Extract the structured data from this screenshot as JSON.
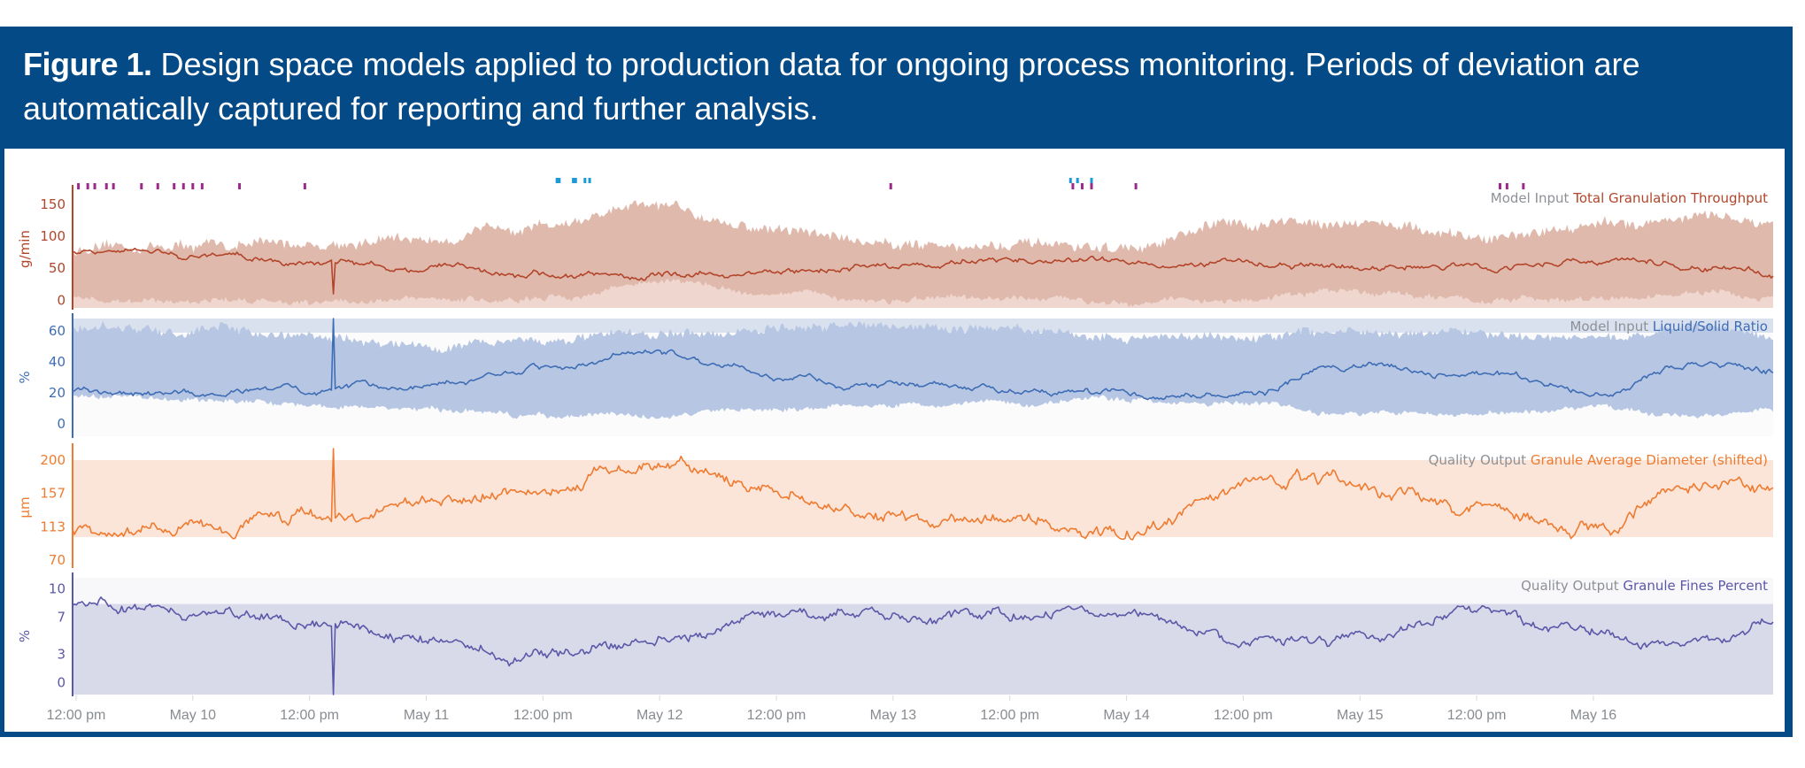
{
  "caption": {
    "label": "Figure 1.",
    "text": " Design space models applied to production data for ongoing process monitoring. Periods of deviation are automatically captured for reporting and further analysis."
  },
  "colors": {
    "frame": "#034a86",
    "deviation_purple": "#9b2a8c",
    "deviation_blue": "#1d9ad6"
  },
  "chart_data": [
    {
      "type": "area",
      "id": "throughput",
      "legend_prefix": "Model Input",
      "legend_name": "Total Granulation Throughput",
      "ylabel": "g/min",
      "yticks": [
        0,
        50,
        100,
        150
      ],
      "ylim": [
        -12,
        172
      ],
      "color_line": "#b2452a",
      "color_band": "#e0b9ad",
      "color_band_light": "#efd6ce",
      "band_description": "design-space band, lower ~0 to upper 60-145",
      "x_days": [
        0,
        0.5,
        1,
        1.5,
        2,
        2.5,
        3,
        3.5,
        4,
        4.5,
        5,
        5.5,
        6,
        6.5,
        7,
        7.25
      ],
      "values": [
        75,
        70,
        60,
        52,
        40,
        38,
        42,
        55,
        62,
        60,
        58,
        50,
        52,
        62,
        50,
        45
      ],
      "band_upper": [
        78,
        85,
        88,
        95,
        120,
        145,
        110,
        90,
        85,
        80,
        120,
        125,
        95,
        118,
        130,
        115
      ],
      "band_lower": [
        0,
        0,
        0,
        0,
        0,
        30,
        10,
        0,
        0,
        0,
        0,
        15,
        0,
        0,
        10,
        0
      ]
    },
    {
      "type": "area",
      "id": "liquid_solid_ratio",
      "legend_prefix": "Model Input",
      "legend_name": "Liquid/Solid Ratio",
      "ylabel": "%",
      "yticks": [
        0,
        20,
        40,
        60
      ],
      "ylim": [
        -8,
        68
      ],
      "color_line": "#3f6db5",
      "color_band": "#b7c7e3",
      "color_band_light": "#d9e1ef",
      "x_days": [
        0,
        0.5,
        1,
        1.5,
        2,
        2.5,
        3,
        3.5,
        4,
        4.5,
        5,
        5.5,
        6,
        6.5,
        7,
        7.25
      ],
      "values": [
        20,
        20,
        21,
        26,
        37,
        45,
        30,
        25,
        22,
        19,
        20,
        38,
        32,
        22,
        40,
        33
      ],
      "band_upper": [
        62,
        60,
        57,
        50,
        55,
        58,
        62,
        63,
        62,
        55,
        56,
        60,
        58,
        58,
        62,
        58
      ],
      "band_lower": [
        18,
        16,
        12,
        8,
        5,
        5,
        10,
        12,
        14,
        16,
        14,
        6,
        6,
        10,
        5,
        8
      ]
    },
    {
      "type": "line",
      "id": "granule_diameter",
      "legend_prefix": "Quality Output",
      "legend_name": "Granule Average Diameter (shifted)",
      "ylabel": "μm",
      "yticks": [
        70,
        113,
        157,
        200
      ],
      "ylim": [
        62,
        215
      ],
      "band": [
        100,
        200
      ],
      "color_line": "#ee7b30",
      "color_band": "#fbe4d8",
      "x_days": [
        0,
        0.5,
        1,
        1.5,
        2,
        2.5,
        3,
        3.5,
        4,
        4.5,
        5,
        5.5,
        6,
        6.5,
        7,
        7.25
      ],
      "values": [
        108,
        112,
        125,
        150,
        165,
        195,
        155,
        130,
        120,
        110,
        165,
        165,
        140,
        115,
        175,
        165
      ],
      "spike": {
        "x_days": 1.1,
        "value": 215
      }
    },
    {
      "type": "line",
      "id": "granule_fines",
      "legend_prefix": "Quality Output",
      "legend_name": "Granule Fines Percent",
      "ylabel": "%",
      "yticks": [
        0,
        3,
        7,
        10
      ],
      "ylim": [
        -1.3,
        11.2
      ],
      "band": [
        -1.3,
        8.4
      ],
      "color_line": "#5c58a8",
      "color_band": "#d8daea",
      "color_band_light": "#f8f8fb",
      "x_days": [
        0,
        0.5,
        1,
        1.5,
        2,
        2.5,
        3,
        3.5,
        4,
        4.5,
        5,
        5.5,
        6,
        6.5,
        7,
        7.25
      ],
      "values": [
        8.3,
        7.5,
        6.8,
        4.5,
        3.0,
        4.5,
        7.0,
        7.2,
        7.4,
        7.8,
        4.0,
        4.5,
        7.8,
        5.0,
        4.2,
        6.0
      ],
      "spike": {
        "x_days": 1.1,
        "value": -1.3
      }
    }
  ],
  "x_axis": {
    "start_label": "12:00 pm",
    "ticks": [
      "12:00 pm",
      "May 10",
      "12:00 pm",
      "May 11",
      "12:00 pm",
      "May 12",
      "12:00 pm",
      "May 13",
      "12:00 pm",
      "May 14",
      "12:00 pm",
      "May 15",
      "12:00 pm",
      "May 16"
    ],
    "range_days": [
      -0.015,
      7.27
    ]
  },
  "deviations": {
    "purple_top_row_days": [
      0.01,
      0.05,
      0.08,
      0.13,
      0.16,
      0.28,
      0.35,
      0.42,
      0.46,
      0.5,
      0.54,
      0.7,
      0.98,
      3.49,
      4.27,
      4.31,
      4.35,
      4.54,
      6.1,
      6.13,
      6.2
    ],
    "blue_top_row_days": [
      2.06,
      2.07,
      2.13,
      2.14,
      2.18,
      2.2,
      4.26,
      4.29,
      4.35
    ]
  }
}
